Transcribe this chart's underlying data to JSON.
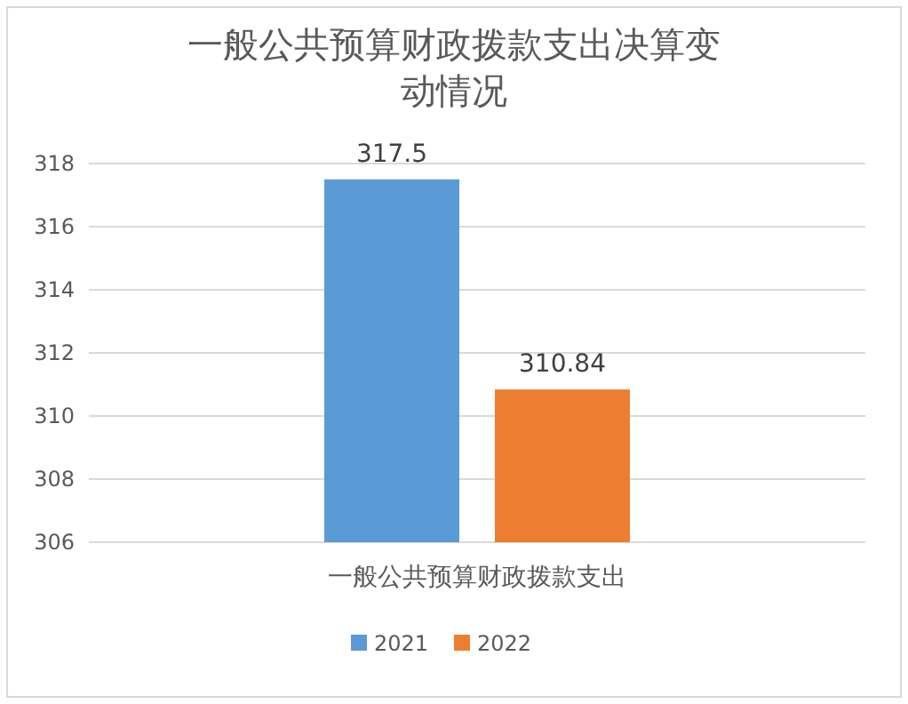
{
  "chart_data": {
    "type": "bar",
    "title": "一般公共预算财政拨款支出决算变动情况",
    "categories": [
      "一般公共预算财政拨款支出"
    ],
    "series": [
      {
        "name": "2021",
        "color": "#5b9bd5",
        "values": [
          317.5
        ]
      },
      {
        "name": "2022",
        "color": "#ed7d31",
        "values": [
          310.84
        ]
      }
    ],
    "ylim": [
      306,
      318
    ],
    "yticks": [
      306,
      308,
      310,
      312,
      314,
      316,
      318
    ],
    "grid": "y",
    "legend": "bottom",
    "data_labels": true
  }
}
